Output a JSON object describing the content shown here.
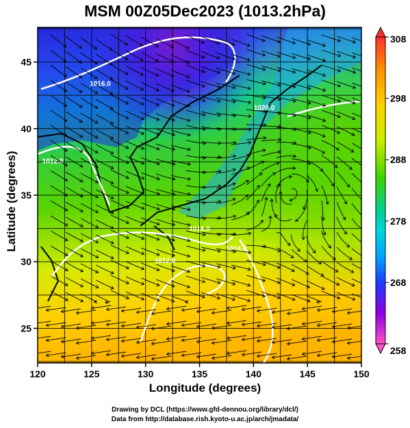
{
  "figure": {
    "title": "MSM 00Z05Dec2023 (1013.2hPa)",
    "xlabel": "Longitude (degrees)",
    "ylabel": "Latitude  (degrees)",
    "credit_line1": "Drawing by DCL (https://www.gfd-dennou.org/library/dcl/)",
    "credit_line2": "Data from http://database.rish.kyoto-u.ac.jp/arch/jmadata/"
  },
  "map": {
    "lon_range": [
      120,
      150
    ],
    "lat_range": [
      22.4,
      47.6
    ],
    "x_ticks": [
      "120",
      "125",
      "130",
      "135",
      "140",
      "145",
      "150"
    ],
    "y_ticks": [
      "25",
      "30",
      "35",
      "40",
      "45"
    ],
    "grid_spacing_deg": 2.5,
    "field": "temperature (K) shaded, surface wind streamlines, pressure contours (white)",
    "contour_labels": [
      {
        "text": "1016.0",
        "lon": 125.8,
        "lat": 43.2
      },
      {
        "text": "1020.0",
        "lon": 141.0,
        "lat": 41.4
      },
      {
        "text": "1012.0",
        "lon": 131.8,
        "lat": 29.9
      },
      {
        "text": "1016.0",
        "lon": 135.0,
        "lat": 32.3
      },
      {
        "text": "1024.0",
        "lon": 138.4,
        "lat": 30.8
      },
      {
        "text": "1012.0",
        "lon": 121.4,
        "lat": 37.4
      }
    ]
  },
  "colorbar": {
    "min": 258,
    "max": 308,
    "ticks": [
      "308",
      "298",
      "288",
      "278",
      "268",
      "258"
    ],
    "colors": [
      "#ff3030",
      "#ff8a00",
      "#ffd200",
      "#c8ee00",
      "#5ad400",
      "#00c878",
      "#00d8d8",
      "#00a0ff",
      "#1e3cff",
      "#6600e8",
      "#c800c8",
      "#ff50c8"
    ]
  }
}
